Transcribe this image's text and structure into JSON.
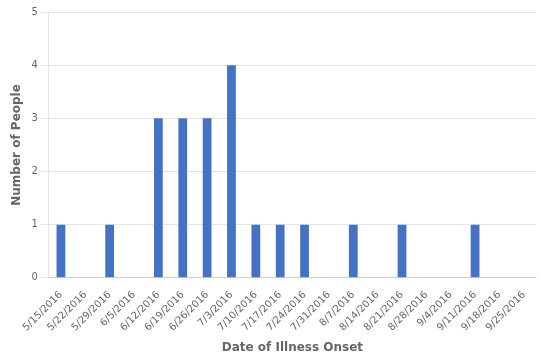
{
  "chart_data": {
    "type": "bar",
    "xlabel": "Date of Illness Onset",
    "ylabel": "Number of People",
    "categories": [
      "5/15/2016",
      "5/22/2016",
      "5/29/2016",
      "6/5/2016",
      "6/12/2016",
      "6/19/2016",
      "6/26/2016",
      "7/3/2016",
      "7/10/2016",
      "7/17/2016",
      "7/24/2016",
      "7/31/2016",
      "8/7/2016",
      "8/14/2016",
      "8/21/2016",
      "8/28/2016",
      "9/4/2016",
      "9/11/2016",
      "9/18/2016",
      "9/25/2016"
    ],
    "values": [
      1,
      0,
      1,
      0,
      3,
      3,
      3,
      4,
      1,
      1,
      1,
      0,
      1,
      0,
      1,
      0,
      0,
      1,
      0,
      0
    ],
    "color": "#4472C4",
    "ylim": [
      0,
      5
    ],
    "yticks": [
      0,
      1,
      2,
      3,
      4,
      5
    ],
    "grid": true
  }
}
